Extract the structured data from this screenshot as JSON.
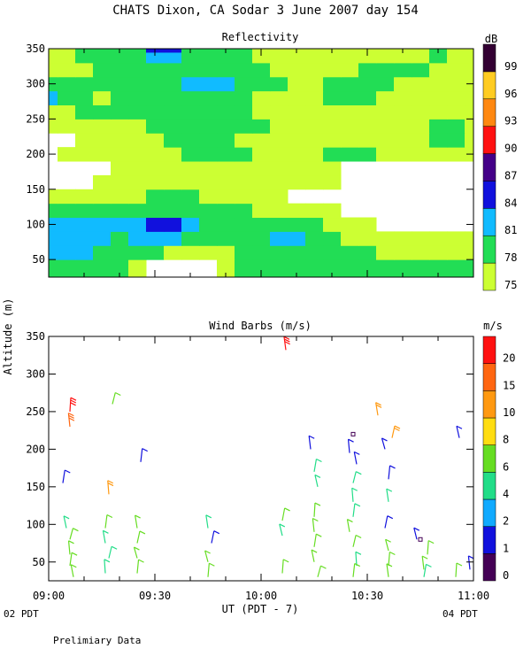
{
  "page": {
    "title": "CHATS Dixon, CA  Sodar   3 June 2007  day 154",
    "ylabel": "Altitude (m)",
    "xlabel": "UT  (PDT - 7)",
    "left_note": "02 PDT",
    "right_note": "04 PDT",
    "footer": "Prelimiary Data"
  },
  "chart_data": [
    {
      "type": "heatmap",
      "title": "Reflectivity",
      "colorbar_title": "dB",
      "colorbar_levels": [
        "75",
        "78",
        "81",
        "84",
        "87",
        "90",
        "93",
        "96",
        "99"
      ],
      "colorbar_colors": [
        "#ccff33",
        "#22dd55",
        "#11bbff",
        "#1111dd",
        "#440088",
        "#ff1111",
        "#ff8811",
        "#ffcc22",
        "#330033"
      ],
      "ylim": [
        25,
        350
      ],
      "yticks": [
        "50",
        "100",
        "150",
        "200",
        "250",
        "300",
        "350"
      ],
      "xlim": [
        0,
        120
      ],
      "xticks": [],
      "x": [
        0,
        5,
        10,
        15,
        20,
        25,
        30,
        35,
        40,
        45,
        50,
        55,
        60,
        65,
        70,
        75,
        80,
        85,
        90,
        95,
        100,
        105,
        110,
        115,
        120
      ],
      "y": [
        40,
        60,
        80,
        100,
        120,
        140,
        160,
        180,
        200,
        220,
        240,
        260,
        280,
        300,
        320,
        340,
        350
      ],
      "values_note": "rows ordered bottom (40 m) to top (350 m); values in dB; below 75 dB is blank",
      "values": [
        [
          78,
          78,
          78,
          78,
          78,
          76,
          70,
          70,
          70,
          70,
          76,
          78,
          78,
          78,
          78,
          78,
          78,
          78,
          78,
          78,
          78,
          78,
          78,
          78,
          78
        ],
        [
          81,
          81,
          81,
          80,
          78,
          78,
          78,
          76,
          76,
          76,
          76,
          78,
          78,
          80,
          78,
          78,
          78,
          78,
          78,
          76,
          76,
          76,
          76,
          76,
          76
        ],
        [
          81,
          81,
          81,
          81,
          80,
          81,
          81,
          81,
          78,
          78,
          78,
          78,
          78,
          81,
          81,
          78,
          78,
          76,
          76,
          76,
          76,
          76,
          76,
          76,
          76
        ],
        [
          81,
          81,
          81,
          81,
          81,
          82,
          86,
          86,
          81,
          78,
          78,
          78,
          78,
          78,
          80,
          78,
          76,
          76,
          76,
          70,
          70,
          70,
          70,
          70,
          70
        ],
        [
          78,
          78,
          78,
          78,
          78,
          78,
          80,
          80,
          78,
          78,
          78,
          78,
          76,
          76,
          76,
          76,
          76,
          70,
          70,
          70,
          70,
          70,
          70,
          70,
          70
        ],
        [
          76,
          76,
          76,
          76,
          76,
          76,
          78,
          78,
          78,
          76,
          76,
          76,
          76,
          76,
          70,
          70,
          70,
          70,
          70,
          70,
          70,
          70,
          70,
          70,
          70
        ],
        [
          70,
          70,
          70,
          76,
          76,
          76,
          76,
          76,
          76,
          76,
          76,
          76,
          76,
          76,
          76,
          76,
          76,
          70,
          70,
          70,
          70,
          70,
          70,
          70,
          70
        ],
        [
          70,
          70,
          70,
          70,
          76,
          76,
          76,
          76,
          76,
          76,
          76,
          76,
          76,
          76,
          76,
          76,
          76,
          70,
          70,
          70,
          70,
          70,
          70,
          70,
          70
        ],
        [
          70,
          76,
          76,
          76,
          76,
          76,
          76,
          76,
          78,
          78,
          78,
          78,
          76,
          76,
          76,
          76,
          78,
          78,
          78,
          76,
          76,
          76,
          76,
          76,
          76
        ],
        [
          70,
          70,
          76,
          76,
          76,
          76,
          76,
          78,
          78,
          78,
          78,
          76,
          76,
          76,
          76,
          76,
          76,
          76,
          76,
          76,
          76,
          76,
          78,
          78,
          76
        ],
        [
          76,
          76,
          76,
          76,
          76,
          76,
          78,
          78,
          78,
          78,
          78,
          78,
          78,
          76,
          76,
          76,
          76,
          76,
          76,
          76,
          76,
          76,
          78,
          78,
          76
        ],
        [
          76,
          76,
          78,
          78,
          78,
          78,
          78,
          78,
          78,
          78,
          78,
          78,
          76,
          76,
          76,
          76,
          76,
          76,
          76,
          76,
          76,
          76,
          76,
          76,
          76
        ],
        [
          81,
          78,
          78,
          76,
          78,
          78,
          78,
          78,
          80,
          80,
          78,
          78,
          76,
          76,
          76,
          76,
          78,
          78,
          78,
          76,
          76,
          76,
          76,
          76,
          76
        ],
        [
          78,
          78,
          78,
          78,
          78,
          78,
          78,
          78,
          81,
          81,
          81,
          78,
          78,
          78,
          76,
          76,
          78,
          78,
          78,
          78,
          76,
          76,
          76,
          76,
          76
        ],
        [
          76,
          76,
          76,
          78,
          78,
          78,
          78,
          78,
          78,
          78,
          78,
          78,
          78,
          76,
          76,
          76,
          76,
          76,
          78,
          78,
          78,
          78,
          76,
          76,
          76
        ],
        [
          76,
          76,
          78,
          78,
          78,
          80,
          81,
          81,
          78,
          78,
          78,
          78,
          76,
          76,
          76,
          76,
          76,
          76,
          76,
          76,
          76,
          76,
          78,
          76,
          76
        ],
        [
          76,
          76,
          78,
          78,
          78,
          80,
          84,
          84,
          78,
          78,
          78,
          78,
          76,
          76,
          76,
          76,
          76,
          76,
          76,
          76,
          76,
          76,
          78,
          76,
          76
        ]
      ]
    },
    {
      "type": "scatter",
      "title": "Wind Barbs (m/s)",
      "colorbar_title": "m/s",
      "colorbar_levels": [
        "0",
        "1",
        "2",
        "4",
        "6",
        "8",
        "10",
        "15",
        "20"
      ],
      "colorbar_colors": [
        "#440055",
        "#1111dd",
        "#11aaff",
        "#22dd88",
        "#66dd22",
        "#ffdd11",
        "#ff9911",
        "#ff6611",
        "#ff1111"
      ],
      "ylim": [
        25,
        350
      ],
      "yticks": [
        "50",
        "100",
        "150",
        "200",
        "250",
        "300",
        "350"
      ],
      "xticks": [
        "09:00",
        "09:30",
        "10:00",
        "10:30",
        "11:00"
      ],
      "xtick_minutes": [
        0,
        30,
        60,
        90,
        120
      ],
      "xlim": [
        0,
        120
      ],
      "barbs_note": "each barb: t = minutes after 09:00 UT, alt = altitude in m, spd = wind speed in m/s",
      "barbs": [
        {
          "t": 6,
          "alt": 250,
          "spd": 20
        },
        {
          "t": 6,
          "alt": 230,
          "spd": 15
        },
        {
          "t": 4,
          "alt": 155,
          "spd": 1
        },
        {
          "t": 5,
          "alt": 95,
          "spd": 4
        },
        {
          "t": 6,
          "alt": 80,
          "spd": 6
        },
        {
          "t": 6,
          "alt": 60,
          "spd": 6
        },
        {
          "t": 6,
          "alt": 45,
          "spd": 6
        },
        {
          "t": 7,
          "alt": 30,
          "spd": 6
        },
        {
          "t": 18,
          "alt": 260,
          "spd": 6
        },
        {
          "t": 17,
          "alt": 140,
          "spd": 10
        },
        {
          "t": 16,
          "alt": 95,
          "spd": 6
        },
        {
          "t": 16,
          "alt": 75,
          "spd": 4
        },
        {
          "t": 17,
          "alt": 55,
          "spd": 4
        },
        {
          "t": 16,
          "alt": 35,
          "spd": 4
        },
        {
          "t": 26,
          "alt": 183,
          "spd": 1
        },
        {
          "t": 25,
          "alt": 95,
          "spd": 6
        },
        {
          "t": 25,
          "alt": 75,
          "spd": 6
        },
        {
          "t": 25,
          "alt": 55,
          "spd": 6
        },
        {
          "t": 25,
          "alt": 35,
          "spd": 6
        },
        {
          "t": 45,
          "alt": 95,
          "spd": 4
        },
        {
          "t": 46,
          "alt": 75,
          "spd": 1
        },
        {
          "t": 45,
          "alt": 50,
          "spd": 6
        },
        {
          "t": 45,
          "alt": 30,
          "spd": 6
        },
        {
          "t": 67,
          "alt": 332,
          "spd": 20
        },
        {
          "t": 66,
          "alt": 105,
          "spd": 6
        },
        {
          "t": 66,
          "alt": 85,
          "spd": 4
        },
        {
          "t": 66,
          "alt": 35,
          "spd": 6
        },
        {
          "t": 74,
          "alt": 200,
          "spd": 1
        },
        {
          "t": 75,
          "alt": 170,
          "spd": 4
        },
        {
          "t": 76,
          "alt": 150,
          "spd": 4
        },
        {
          "t": 75,
          "alt": 110,
          "spd": 6
        },
        {
          "t": 75,
          "alt": 90,
          "spd": 6
        },
        {
          "t": 75,
          "alt": 70,
          "spd": 6
        },
        {
          "t": 75,
          "alt": 50,
          "spd": 6
        },
        {
          "t": 76,
          "alt": 30,
          "spd": 6
        },
        {
          "t": 85,
          "alt": 195,
          "spd": 1
        },
        {
          "t": 86,
          "alt": 220,
          "spd": 0
        },
        {
          "t": 87,
          "alt": 180,
          "spd": 1
        },
        {
          "t": 86,
          "alt": 155,
          "spd": 4
        },
        {
          "t": 86,
          "alt": 130,
          "spd": 4
        },
        {
          "t": 86,
          "alt": 110,
          "spd": 4
        },
        {
          "t": 85,
          "alt": 90,
          "spd": 6
        },
        {
          "t": 86,
          "alt": 70,
          "spd": 6
        },
        {
          "t": 87,
          "alt": 45,
          "spd": 4
        },
        {
          "t": 86,
          "alt": 30,
          "spd": 6
        },
        {
          "t": 93,
          "alt": 245,
          "spd": 10
        },
        {
          "t": 97,
          "alt": 215,
          "spd": 10
        },
        {
          "t": 95,
          "alt": 200,
          "spd": 1
        },
        {
          "t": 96,
          "alt": 160,
          "spd": 1
        },
        {
          "t": 96,
          "alt": 130,
          "spd": 4
        },
        {
          "t": 95,
          "alt": 95,
          "spd": 1
        },
        {
          "t": 96,
          "alt": 65,
          "spd": 6
        },
        {
          "t": 96,
          "alt": 45,
          "spd": 6
        },
        {
          "t": 96,
          "alt": 30,
          "spd": 6
        },
        {
          "t": 105,
          "alt": 80,
          "spd": 0
        },
        {
          "t": 104,
          "alt": 80,
          "spd": 1
        },
        {
          "t": 107,
          "alt": 60,
          "spd": 6
        },
        {
          "t": 106,
          "alt": 40,
          "spd": 6
        },
        {
          "t": 106,
          "alt": 30,
          "spd": 4
        },
        {
          "t": 116,
          "alt": 215,
          "spd": 1
        },
        {
          "t": 115,
          "alt": 30,
          "spd": 6
        },
        {
          "t": 119,
          "alt": 40,
          "spd": 1
        }
      ]
    }
  ]
}
